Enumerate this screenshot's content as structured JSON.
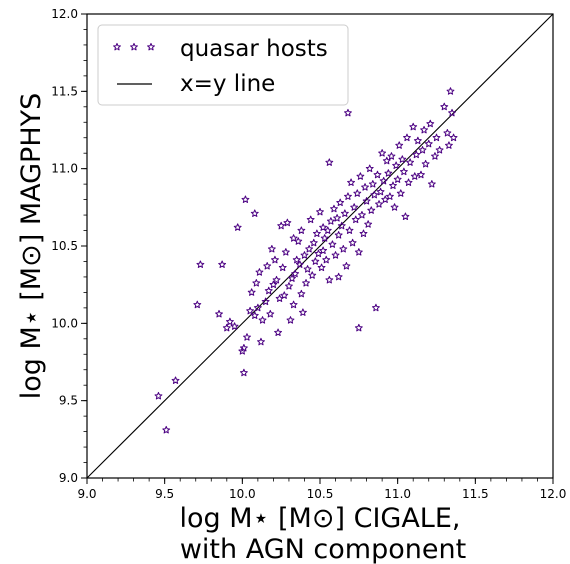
{
  "chart_data": {
    "type": "scatter",
    "xlabel_line1": "log M⋆ [M⊙] CIGALE,",
    "xlabel_line2": "with AGN component",
    "ylabel": "log M⋆ [M⊙] MAGPHYS",
    "xlim": [
      9.0,
      12.0
    ],
    "ylim": [
      9.0,
      12.0
    ],
    "xticks": [
      "9.0",
      "9.5",
      "10.0",
      "10.5",
      "11.0",
      "11.5",
      "12.0"
    ],
    "yticks": [
      "9.0",
      "9.5",
      "10.0",
      "10.5",
      "11.0",
      "11.5",
      "12.0"
    ],
    "minor_tick_step": 0.1,
    "grid": false,
    "legend_position": "top-left",
    "colors": {
      "marker": "#4b0082",
      "line": "#000000",
      "axis": "#000000"
    },
    "series": [
      {
        "name": "quasar hosts",
        "marker": "star-outline",
        "points": [
          [
            9.46,
            9.53
          ],
          [
            9.51,
            9.31
          ],
          [
            9.57,
            9.63
          ],
          [
            9.71,
            10.12
          ],
          [
            9.73,
            10.38
          ],
          [
            9.85,
            10.06
          ],
          [
            9.87,
            10.38
          ],
          [
            9.9,
            9.97
          ],
          [
            9.92,
            10.01
          ],
          [
            9.95,
            9.98
          ],
          [
            9.97,
            10.62
          ],
          [
            10.0,
            9.82
          ],
          [
            10.01,
            9.84
          ],
          [
            10.01,
            9.68
          ],
          [
            10.02,
            10.8
          ],
          [
            10.03,
            9.91
          ],
          [
            10.05,
            10.08
          ],
          [
            10.06,
            10.2
          ],
          [
            10.08,
            10.71
          ],
          [
            10.08,
            10.05
          ],
          [
            10.09,
            10.26
          ],
          [
            10.1,
            10.1
          ],
          [
            10.11,
            10.33
          ],
          [
            10.12,
            9.88
          ],
          [
            10.13,
            10.02
          ],
          [
            10.15,
            10.14
          ],
          [
            10.16,
            10.37
          ],
          [
            10.17,
            10.21
          ],
          [
            10.18,
            10.06
          ],
          [
            10.19,
            10.48
          ],
          [
            10.2,
            10.25
          ],
          [
            10.21,
            10.41
          ],
          [
            10.22,
            10.28
          ],
          [
            10.23,
            9.94
          ],
          [
            10.24,
            10.16
          ],
          [
            10.25,
            10.63
          ],
          [
            10.26,
            10.36
          ],
          [
            10.27,
            10.18
          ],
          [
            10.28,
            10.46
          ],
          [
            10.29,
            10.65
          ],
          [
            10.3,
            10.24
          ],
          [
            10.31,
            10.02
          ],
          [
            10.32,
            10.29
          ],
          [
            10.33,
            10.55
          ],
          [
            10.33,
            10.12
          ],
          [
            10.34,
            10.32
          ],
          [
            10.35,
            10.41
          ],
          [
            10.36,
            10.53
          ],
          [
            10.37,
            10.38
          ],
          [
            10.38,
            10.19
          ],
          [
            10.38,
            10.6
          ],
          [
            10.39,
            10.07
          ],
          [
            10.4,
            10.44
          ],
          [
            10.41,
            10.26
          ],
          [
            10.42,
            10.35
          ],
          [
            10.43,
            10.48
          ],
          [
            10.44,
            10.67
          ],
          [
            10.45,
            10.31
          ],
          [
            10.46,
            10.52
          ],
          [
            10.47,
            10.4
          ],
          [
            10.48,
            10.58
          ],
          [
            10.49,
            10.45
          ],
          [
            10.5,
            10.72
          ],
          [
            10.51,
            10.36
          ],
          [
            10.52,
            10.62
          ],
          [
            10.52,
            10.47
          ],
          [
            10.53,
            10.55
          ],
          [
            10.54,
            10.41
          ],
          [
            10.55,
            10.6
          ],
          [
            10.56,
            11.04
          ],
          [
            10.56,
            10.28
          ],
          [
            10.57,
            10.66
          ],
          [
            10.58,
            10.51
          ],
          [
            10.59,
            10.74
          ],
          [
            10.6,
            10.44
          ],
          [
            10.61,
            10.68
          ],
          [
            10.62,
            10.57
          ],
          [
            10.62,
            10.3
          ],
          [
            10.63,
            10.78
          ],
          [
            10.64,
            10.63
          ],
          [
            10.65,
            10.48
          ],
          [
            10.66,
            10.71
          ],
          [
            10.67,
            10.37
          ],
          [
            10.68,
            11.36
          ],
          [
            10.68,
            10.82
          ],
          [
            10.69,
            10.6
          ],
          [
            10.7,
            10.91
          ],
          [
            10.71,
            10.52
          ],
          [
            10.72,
            10.75
          ],
          [
            10.73,
            10.67
          ],
          [
            10.74,
            10.84
          ],
          [
            10.75,
            10.46
          ],
          [
            10.75,
            9.97
          ],
          [
            10.76,
            10.95
          ],
          [
            10.77,
            10.7
          ],
          [
            10.78,
            10.58
          ],
          [
            10.79,
            10.88
          ],
          [
            10.8,
            10.79
          ],
          [
            10.81,
            10.64
          ],
          [
            10.82,
            11.0
          ],
          [
            10.83,
            10.73
          ],
          [
            10.84,
            10.9
          ],
          [
            10.85,
            10.83
          ],
          [
            10.86,
            10.1
          ],
          [
            10.87,
            10.96
          ],
          [
            10.88,
            10.77
          ],
          [
            10.89,
            10.85
          ],
          [
            10.9,
            11.1
          ],
          [
            10.91,
            10.92
          ],
          [
            10.92,
            10.8
          ],
          [
            10.93,
            11.05
          ],
          [
            10.94,
            10.97
          ],
          [
            10.95,
            10.82
          ],
          [
            10.96,
            11.08
          ],
          [
            10.97,
            10.89
          ],
          [
            10.98,
            10.75
          ],
          [
            10.99,
            11.02
          ],
          [
            11.0,
            10.93
          ],
          [
            11.01,
            11.15
          ],
          [
            11.02,
            10.84
          ],
          [
            11.03,
            11.06
          ],
          [
            11.04,
            10.98
          ],
          [
            11.05,
            10.69
          ],
          [
            11.06,
            11.2
          ],
          [
            11.07,
            10.91
          ],
          [
            11.08,
            11.04
          ],
          [
            11.1,
            11.27
          ],
          [
            11.11,
            10.95
          ],
          [
            11.12,
            11.09
          ],
          [
            11.13,
            11.18
          ],
          [
            11.15,
            10.96
          ],
          [
            11.16,
            11.12
          ],
          [
            11.17,
            11.25
          ],
          [
            11.18,
            11.03
          ],
          [
            11.2,
            11.16
          ],
          [
            11.21,
            11.29
          ],
          [
            11.22,
            10.9
          ],
          [
            11.24,
            11.08
          ],
          [
            11.25,
            11.2
          ],
          [
            11.27,
            11.12
          ],
          [
            11.3,
            11.4
          ],
          [
            11.32,
            11.23
          ],
          [
            11.33,
            11.15
          ],
          [
            11.34,
            11.5
          ],
          [
            11.35,
            11.36
          ],
          [
            11.36,
            11.2
          ]
        ]
      },
      {
        "name": "x=y line",
        "type": "line",
        "points": [
          [
            9.0,
            9.0
          ],
          [
            12.0,
            12.0
          ]
        ]
      }
    ]
  }
}
